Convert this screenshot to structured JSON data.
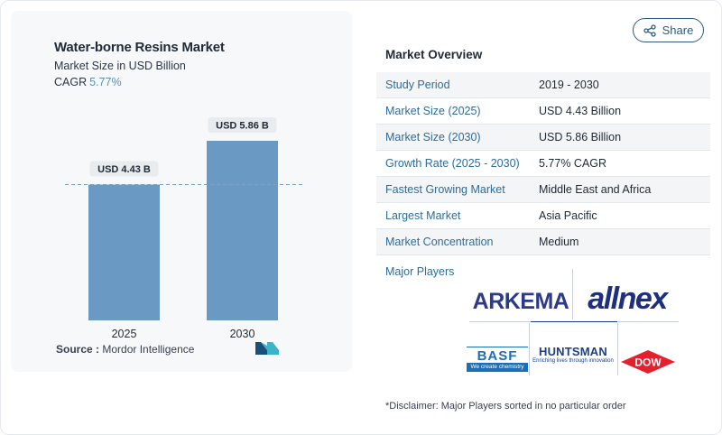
{
  "share": {
    "label": "Share",
    "icon": "share-icon"
  },
  "chart": {
    "title": "Water-borne Resins Market",
    "subtitle": "Market Size in USD Billion",
    "cagr_label": "CAGR",
    "cagr_value": "5.77%",
    "source_label": "Source :",
    "source_value": "Mordor Intelligence",
    "bar_color": "#6a99c3"
  },
  "chart_data": {
    "type": "bar",
    "categories": [
      "2025",
      "2030"
    ],
    "values": [
      4.43,
      5.86
    ],
    "data_labels": [
      "USD 4.43 B",
      "USD 5.86 B"
    ],
    "title": "Water-borne Resins Market",
    "subtitle": "Market Size in USD Billion",
    "ylim": [
      0,
      5.86
    ],
    "reference_line": 4.43,
    "grid": false
  },
  "overview": {
    "title": "Market Overview",
    "rows": [
      {
        "key": "Study Period",
        "value": "2019 - 2030"
      },
      {
        "key": "Market Size (2025)",
        "value": "USD 4.43 Billion"
      },
      {
        "key": "Market Size (2030)",
        "value": "USD 5.86 Billion"
      },
      {
        "key": "Growth Rate (2025 - 2030)",
        "value": "5.77% CAGR"
      },
      {
        "key": "Fastest Growing Market",
        "value": "Middle East and Africa"
      },
      {
        "key": "Largest Market",
        "value": "Asia Pacific"
      },
      {
        "key": "Market Concentration",
        "value": "Medium"
      }
    ]
  },
  "players": {
    "label": "Major Players",
    "arkema": "ARKEMA",
    "allnex": "allnex",
    "basf_top": "BASF",
    "basf_bottom": "We create chemistry",
    "huntsman_top": "HUNTSMAN",
    "huntsman_bottom": "Enriching lives through innovation",
    "dow": "DOW"
  },
  "disclaimer": "*Disclaimer: Major Players sorted in no particular order"
}
